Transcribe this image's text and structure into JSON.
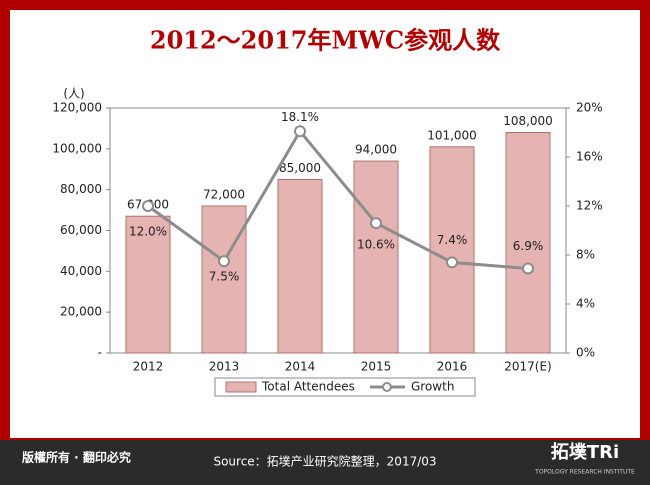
{
  "chart_data": {
    "type": "bar-line",
    "title": "2012～2017年MWC参观人数",
    "y_label": "(人)",
    "categories": [
      "2012",
      "2013",
      "2014",
      "2015",
      "2016",
      "2017(E)"
    ],
    "series": [
      {
        "name": "Total Attendees",
        "color": "#e6b3b3",
        "values": [
          67000,
          72000,
          85000,
          94000,
          101000,
          108000
        ],
        "value_labels": [
          "67,000",
          "72,000",
          "85,000",
          "94,000",
          "101,000",
          "108,000"
        ]
      },
      {
        "name": "Growth",
        "color": "#8c8c8c",
        "axis": "y2",
        "values": [
          12.0,
          7.5,
          18.1,
          10.6,
          7.4,
          6.9
        ],
        "value_labels": [
          "12.0%",
          "7.5%",
          "18.1%",
          "10.6%",
          "7.4%",
          "6.9%"
        ]
      }
    ],
    "ylim": [
      0,
      120000
    ],
    "yticks": [
      {
        "value": 0,
        "label": "-"
      },
      {
        "value": 20000,
        "label": "20,000"
      },
      {
        "value": 40000,
        "label": "40,000"
      },
      {
        "value": 60000,
        "label": "60,000"
      },
      {
        "value": 80000,
        "label": "80,000"
      },
      {
        "value": 100000,
        "label": "100,000"
      },
      {
        "value": 120000,
        "label": "120,000"
      }
    ],
    "y2lim": [
      0,
      20
    ],
    "y2ticks": [
      {
        "value": 0,
        "label": "0%"
      },
      {
        "value": 4,
        "label": "4%"
      },
      {
        "value": 8,
        "label": "8%"
      },
      {
        "value": 12,
        "label": "12%"
      },
      {
        "value": 16,
        "label": "16%"
      },
      {
        "value": 20,
        "label": "20%"
      }
    ]
  },
  "footer": {
    "copyright": "版權所有 · 翻印必究",
    "source": "Source：拓墣产业研究院整理，2017/03",
    "logo": "拓墣TRi",
    "logo_sub": "TOPOLOGY RESEARCH INSTITUTE"
  }
}
